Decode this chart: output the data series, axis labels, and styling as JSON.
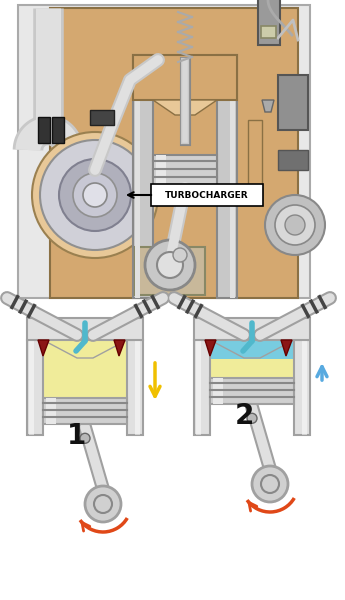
{
  "bg": "#ffffff",
  "turbo_label": "TURBOCHARGER",
  "engine_tan": "#d4a870",
  "engine_tan_light": "#e8c898",
  "engine_gray": "#c8c8c8",
  "engine_gray_dark": "#a0a0a0",
  "engine_gray_light": "#e0e0e0",
  "cyl_silver": "#d0d0d0",
  "cyl_silver_dark": "#a8a8a8",
  "crank_beige": "#c8b89a",
  "p1_fill": "#f0ec9a",
  "p2_fill_top": "#78cce0",
  "p2_fill_bot": "#f0ec9a",
  "arr1_col": "#f0c000",
  "arr2_col": "#58aae0",
  "crank_arr_col": "#e04818",
  "valve_cyan": "#50b8cc",
  "dark_red": "#8B1515",
  "pipe_gray": "#b8b8b8",
  "pipe_dark": "#888888"
}
